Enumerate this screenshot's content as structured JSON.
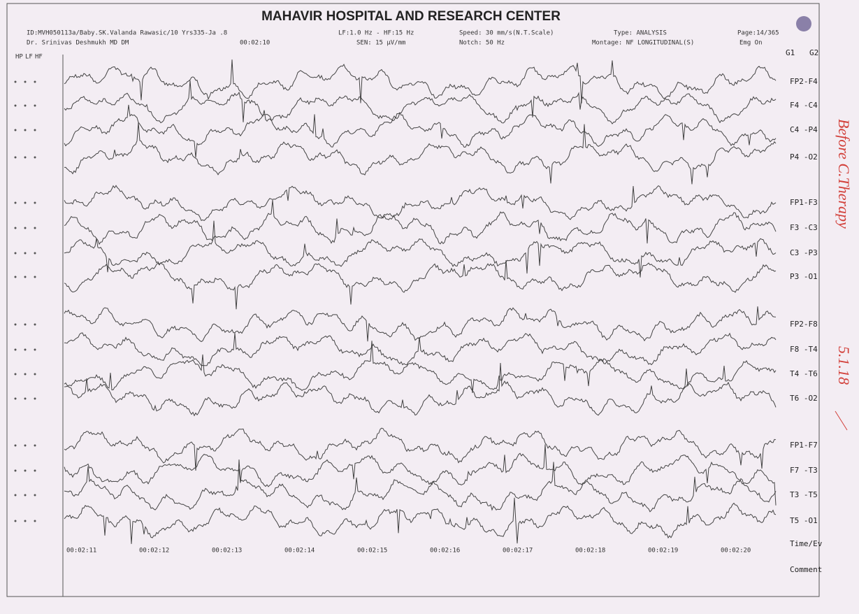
{
  "header": {
    "title": "MAHAVIR HOSPITAL AND RESEARCH CENTER",
    "id_line": "ID:MVH050113a/Baby.SK.Valanda Rawasic/10 Yrs335-Ja .8",
    "doctor": "Dr. Srinivas Deshmukh MD DM",
    "time": "00:02:10",
    "filters": "LF:1.0 Hz - HF:15 Hz",
    "sensitivity": "SEN: 15 µV/mm",
    "speed": "Speed: 30 mm/s(N.T.Scale)",
    "notch": "Notch: 50 Hz",
    "type": "Type: ANALYSIS",
    "montage": "Montage: NF LONGITUDINAL(S)",
    "page": "Page:14/365",
    "emg": "Emg On"
  },
  "column_headers": [
    "HP",
    "LF",
    "HF"
  ],
  "group_labels": [
    "G1",
    "G2"
  ],
  "channels": [
    "FP2-F4",
    "F4 -C4",
    "C4 -P4",
    "P4 -O2",
    "FP1-F3",
    "F3 -C3",
    "C3 -P3",
    "P3 -O1",
    "FP2-F8",
    "F8 -T4",
    "T4 -T6",
    "T6 -O2",
    "FP1-F7",
    "F7 -T3",
    "T3 -T5",
    "T5 -O1"
  ],
  "footer_rows": [
    "Time/Ev",
    "Comment"
  ],
  "time_labels": [
    "00:02:11",
    "00:02:12",
    "00:02:13",
    "00:02:14",
    "00:02:15",
    "00:02:16",
    "00:02:17",
    "00:02:18",
    "00:02:19",
    "00:02:20"
  ],
  "handwritten": {
    "note": "Before C.Therapy",
    "date": "5.1.18"
  }
}
